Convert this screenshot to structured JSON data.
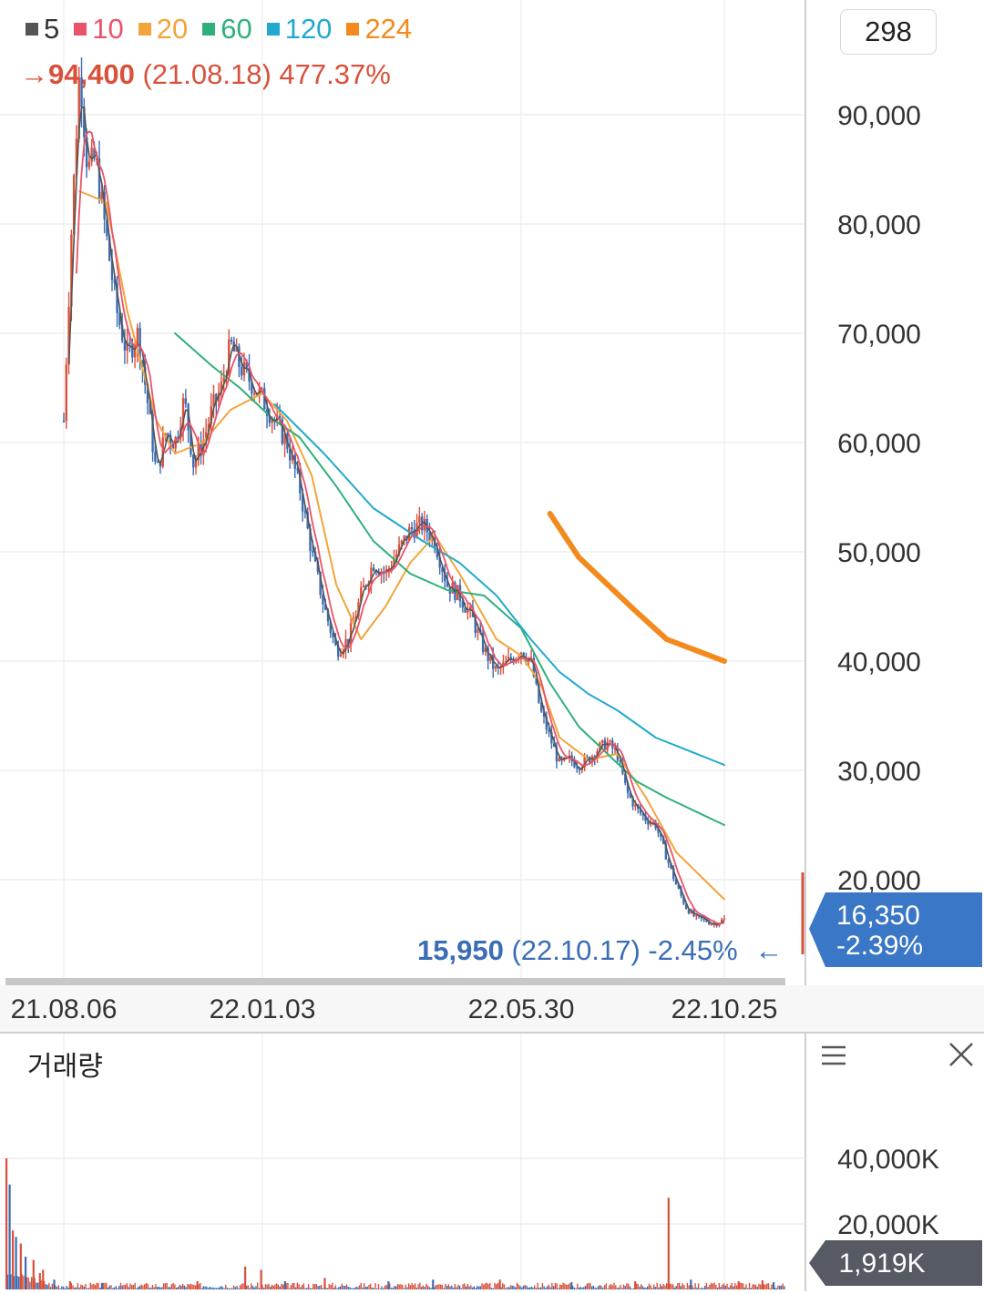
{
  "legend": [
    {
      "label": "5",
      "color": "#555555"
    },
    {
      "label": "10",
      "color": "#e8536a"
    },
    {
      "label": "20",
      "color": "#f2a53a"
    },
    {
      "label": "60",
      "color": "#2fb07a"
    },
    {
      "label": "120",
      "color": "#21a9cf"
    },
    {
      "label": "224",
      "color": "#f28a1e"
    }
  ],
  "high_note": {
    "arrow": "→",
    "price": "94,400",
    "date": "(21.08.18)",
    "pct": "477.37%"
  },
  "low_note": {
    "price": "15,950",
    "date": "(22.10.17)",
    "pct": "-2.45%",
    "arrow": "←"
  },
  "scale_box": "298",
  "current_price": {
    "price": "16,350",
    "change": "-2.39%"
  },
  "volume": {
    "title": "거래량",
    "ticks": [
      "40,000K",
      "20,000K"
    ],
    "current": "1,919K"
  },
  "colors": {
    "up": "#d9513a",
    "down": "#3a6db5",
    "price_tag": "#3a77c6",
    "volume_tag": "#555a63"
  },
  "icons": {
    "menu": "menu-icon",
    "close": "close-icon"
  },
  "chart_data": {
    "type": "candlestick",
    "y_ticks": [
      "90,000",
      "80,000",
      "70,000",
      "60,000",
      "50,000",
      "40,000",
      "30,000",
      "20,000"
    ],
    "y_tick_values": [
      90000,
      80000,
      70000,
      60000,
      50000,
      40000,
      30000,
      20000
    ],
    "ylim": [
      12000,
      98000
    ],
    "x_ticks": [
      "21.08.06",
      "22.01.03",
      "22.05.30",
      "22.10.25"
    ],
    "price_path": [
      [
        "21.08.06",
        62000
      ],
      [
        "21.08.12",
        80000
      ],
      [
        "21.08.18",
        94400
      ],
      [
        "21.08.24",
        85000
      ],
      [
        "21.08.30",
        86000
      ],
      [
        "21.09.07",
        79000
      ],
      [
        "21.09.15",
        72000
      ],
      [
        "21.09.23",
        68000
      ],
      [
        "21.10.01",
        70000
      ],
      [
        "21.10.08",
        64000
      ],
      [
        "21.10.15",
        57000
      ],
      [
        "21.10.22",
        61000
      ],
      [
        "21.10.29",
        60000
      ],
      [
        "21.11.05",
        64000
      ],
      [
        "21.11.12",
        58000
      ],
      [
        "21.11.19",
        60000
      ],
      [
        "21.11.26",
        63000
      ],
      [
        "21.12.03",
        65000
      ],
      [
        "21.12.10",
        69000
      ],
      [
        "21.12.17",
        67000
      ],
      [
        "22.01.03",
        64000
      ],
      [
        "22.01.10",
        62000
      ],
      [
        "22.01.17",
        60000
      ],
      [
        "22.01.24",
        56000
      ],
      [
        "22.01.31",
        50000
      ],
      [
        "22.02.07",
        45000
      ],
      [
        "22.02.14",
        41000
      ],
      [
        "22.02.21",
        42000
      ],
      [
        "22.02.28",
        46000
      ],
      [
        "22.03.07",
        49000
      ],
      [
        "22.03.14",
        48000
      ],
      [
        "22.03.21",
        50000
      ],
      [
        "22.03.28",
        52000
      ],
      [
        "22.04.04",
        52500
      ],
      [
        "22.04.11",
        51000
      ],
      [
        "22.04.18",
        47000
      ],
      [
        "22.04.25",
        46000
      ],
      [
        "22.05.02",
        44000
      ],
      [
        "22.05.09",
        41000
      ],
      [
        "22.05.16",
        39000
      ],
      [
        "22.05.23",
        40000
      ],
      [
        "22.05.30",
        41000
      ],
      [
        "22.06.06",
        40000
      ],
      [
        "22.06.13",
        35500
      ],
      [
        "22.06.20",
        33000
      ],
      [
        "22.06.27",
        30500
      ],
      [
        "22.07.04",
        31000
      ],
      [
        "22.07.11",
        30500
      ],
      [
        "22.07.18",
        31000
      ],
      [
        "22.07.25",
        32000
      ],
      [
        "22.08.01",
        32500
      ],
      [
        "22.08.08",
        31500
      ],
      [
        "22.08.15",
        28000
      ],
      [
        "22.08.22",
        26500
      ],
      [
        "22.08.29",
        25500
      ],
      [
        "22.09.05",
        25000
      ],
      [
        "22.09.13",
        22000
      ],
      [
        "22.09.20",
        19500
      ],
      [
        "22.09.27",
        17500
      ],
      [
        "22.10.04",
        16500
      ],
      [
        "22.10.11",
        16300
      ],
      [
        "22.10.17",
        15950
      ],
      [
        "22.10.25",
        16350
      ]
    ],
    "ma": {
      "20": [
        [
          "21.08.18",
          83000
        ],
        [
          "21.09.07",
          82000
        ],
        [
          "21.09.23",
          72000
        ],
        [
          "21.10.15",
          62000
        ],
        [
          "21.10.29",
          59000
        ],
        [
          "21.11.19",
          60000
        ],
        [
          "21.12.10",
          63000
        ],
        [
          "22.01.03",
          64500
        ],
        [
          "22.01.17",
          62000
        ],
        [
          "22.01.31",
          57000
        ],
        [
          "22.02.14",
          47000
        ],
        [
          "22.02.28",
          42000
        ],
        [
          "22.03.14",
          45000
        ],
        [
          "22.03.28",
          49000
        ],
        [
          "22.04.11",
          51500
        ],
        [
          "22.04.25",
          48000
        ],
        [
          "22.05.16",
          42000
        ],
        [
          "22.05.30",
          40500
        ],
        [
          "22.06.13",
          38000
        ],
        [
          "22.06.27",
          33000
        ],
        [
          "22.07.18",
          31000
        ],
        [
          "22.08.08",
          31500
        ],
        [
          "22.08.29",
          27500
        ],
        [
          "22.09.20",
          22500
        ],
        [
          "22.10.25",
          18200
        ]
      ],
      "60": [
        [
          "21.10.29",
          70000
        ],
        [
          "21.11.26",
          67000
        ],
        [
          "21.12.17",
          65000
        ],
        [
          "22.01.10",
          62000
        ],
        [
          "22.01.24",
          60500
        ],
        [
          "22.02.14",
          56000
        ],
        [
          "22.03.07",
          51000
        ],
        [
          "22.03.28",
          48000
        ],
        [
          "22.04.18",
          46500
        ],
        [
          "22.05.09",
          46000
        ],
        [
          "22.05.30",
          43000
        ],
        [
          "22.06.20",
          38000
        ],
        [
          "22.07.11",
          34000
        ],
        [
          "22.08.01",
          31500
        ],
        [
          "22.08.22",
          29000
        ],
        [
          "22.09.13",
          27500
        ],
        [
          "22.10.25",
          25000
        ]
      ],
      "120": [
        [
          "22.01.10",
          63500
        ],
        [
          "22.02.07",
          59000
        ],
        [
          "22.03.07",
          54000
        ],
        [
          "22.04.04",
          51000
        ],
        [
          "22.04.25",
          49000
        ],
        [
          "22.05.16",
          46000
        ],
        [
          "22.06.06",
          42000
        ],
        [
          "22.06.27",
          39000
        ],
        [
          "22.07.18",
          37000
        ],
        [
          "22.08.08",
          35500
        ],
        [
          "22.09.05",
          33000
        ],
        [
          "22.10.25",
          30500
        ]
      ],
      "224": [
        [
          "22.06.20",
          53500
        ],
        [
          "22.07.11",
          49500
        ],
        [
          "22.08.01",
          47000
        ],
        [
          "22.08.22",
          44500
        ],
        [
          "22.09.13",
          42000
        ],
        [
          "22.10.25",
          40000
        ]
      ]
    },
    "volume_bars": [
      {
        "i": 0,
        "v": 40000,
        "up": true
      },
      {
        "i": 2,
        "v": 32000,
        "up": false
      },
      {
        "i": 4,
        "v": 18000,
        "up": true
      },
      {
        "i": 6,
        "v": 16000,
        "up": false
      },
      {
        "i": 9,
        "v": 14000,
        "up": true
      },
      {
        "i": 12,
        "v": 10000,
        "up": false
      },
      {
        "i": 17,
        "v": 9000,
        "up": true
      },
      {
        "i": 21,
        "v": 5000,
        "up": true
      },
      {
        "i": 23,
        "v": 6000,
        "up": true
      },
      {
        "i": 30,
        "v": 3000,
        "up": false
      },
      {
        "i": 40,
        "v": 2500,
        "up": true
      },
      {
        "i": 60,
        "v": 2000,
        "up": false
      },
      {
        "i": 120,
        "v": 2500,
        "up": true
      },
      {
        "i": 150,
        "v": 7000,
        "up": true
      },
      {
        "i": 160,
        "v": 6000,
        "up": true
      },
      {
        "i": 175,
        "v": 2500,
        "up": false
      },
      {
        "i": 200,
        "v": 3500,
        "up": true
      },
      {
        "i": 240,
        "v": 2500,
        "up": false
      },
      {
        "i": 268,
        "v": 3000,
        "up": false
      },
      {
        "i": 310,
        "v": 3000,
        "up": true
      },
      {
        "i": 355,
        "v": 2200,
        "up": false
      },
      {
        "i": 395,
        "v": 2500,
        "up": true
      },
      {
        "i": 416,
        "v": 28000,
        "up": true
      },
      {
        "i": 430,
        "v": 3000,
        "up": false
      },
      {
        "i": 460,
        "v": 2500,
        "up": true
      },
      {
        "i": 475,
        "v": 2800,
        "up": true
      },
      {
        "i": 482,
        "v": 2200,
        "up": false
      }
    ],
    "volume_ylim": [
      0,
      60000
    ]
  }
}
